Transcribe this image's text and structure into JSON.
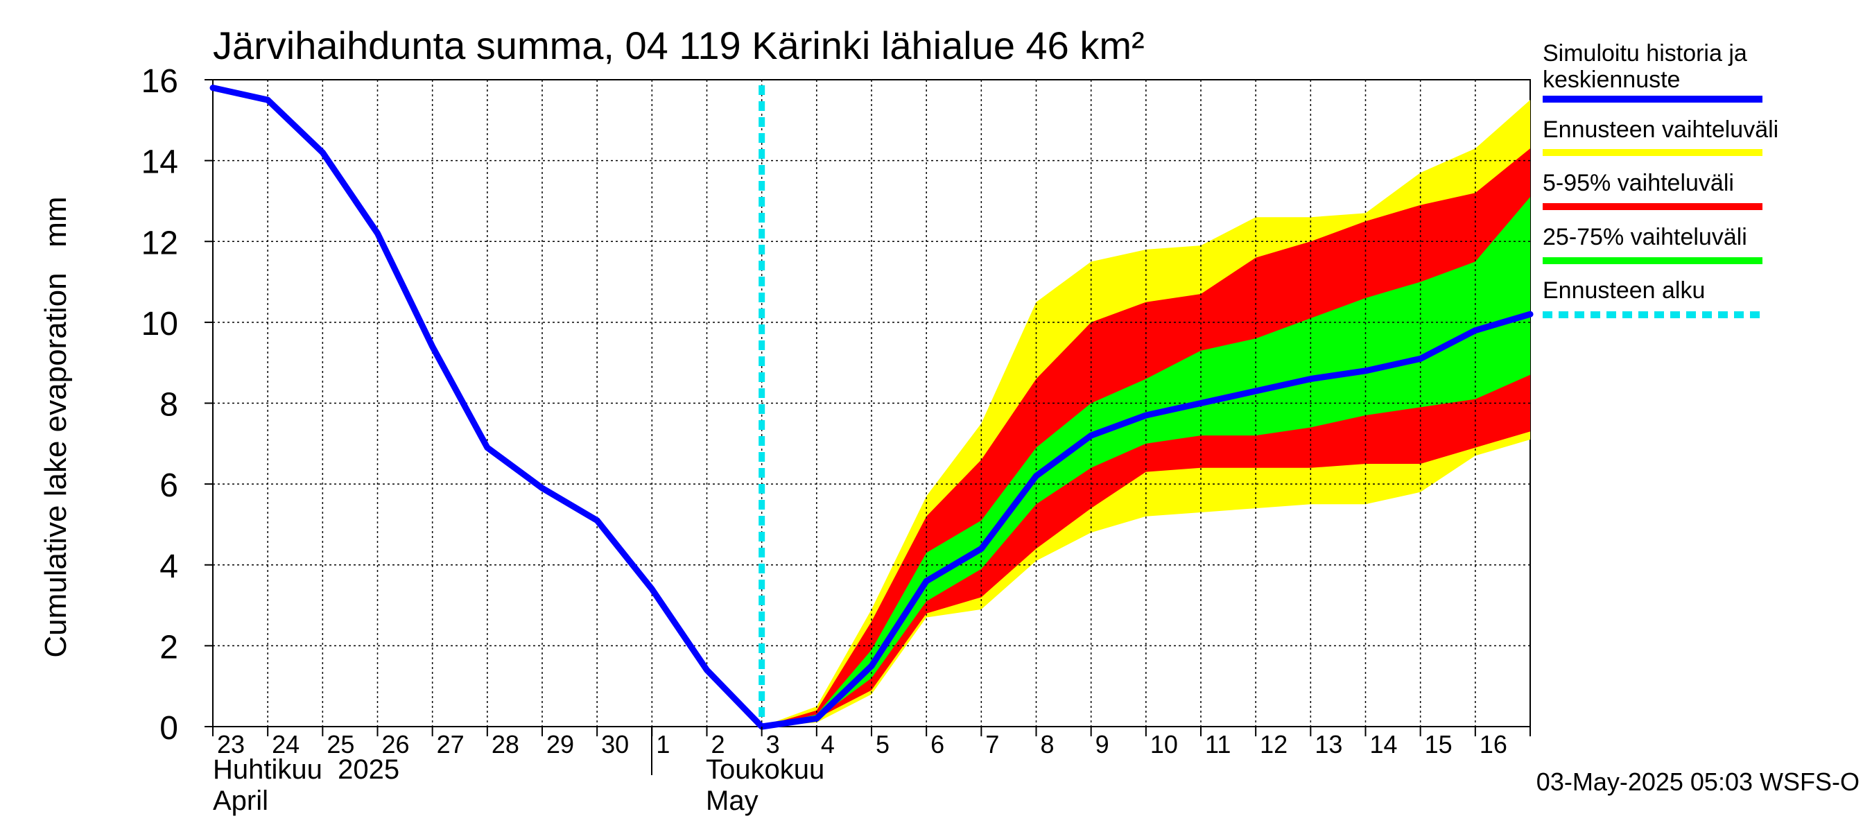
{
  "chart_data": {
    "type": "area",
    "title": "Järvihaihdunta summa, 04 119 Kärinki lähialue 46 km²",
    "ylabel": "Cumulative lake evaporation   mm",
    "ylim": [
      0,
      16
    ],
    "yticks": [
      0,
      2,
      4,
      6,
      8,
      10,
      12,
      14,
      16
    ],
    "xlim_days": [
      0,
      24
    ],
    "x_tick_labels": [
      "23",
      "24",
      "25",
      "26",
      "27",
      "28",
      "29",
      "30",
      "1",
      "2",
      "3",
      "4",
      "5",
      "6",
      "7",
      "8",
      "9",
      "10",
      "11",
      "12",
      "13",
      "14",
      "15",
      "16"
    ],
    "month_labels": {
      "april_fi": "Huhtikuu  2025",
      "april_en": "April",
      "may_fi": "Toukokuu",
      "may_en": "May"
    },
    "forecast_start_day": 10,
    "forecast_days": [
      10,
      11,
      12,
      13,
      14,
      15,
      16,
      17,
      18,
      19,
      20,
      21,
      22,
      23,
      24
    ],
    "series": [
      {
        "name": "Simuloitu historia ja keskiennuste",
        "color": "#0000ff",
        "x": [
          0,
          1,
          2,
          3,
          4,
          5,
          6,
          7,
          8,
          9,
          10,
          11,
          12,
          13,
          14,
          15,
          16,
          17,
          18,
          19,
          20,
          21,
          22,
          23,
          24
        ],
        "values": [
          15.8,
          15.5,
          14.2,
          12.2,
          9.4,
          6.9,
          5.9,
          5.1,
          3.4,
          1.4,
          0.0,
          0.2,
          1.5,
          3.6,
          4.4,
          6.2,
          7.2,
          7.7,
          8.0,
          8.3,
          8.6,
          8.8,
          9.1,
          9.8,
          10.2
        ]
      },
      {
        "name": "Ennusteen vaihteluväli",
        "color": "#ffff00",
        "upper": [
          0.0,
          0.5,
          2.9,
          5.7,
          7.5,
          10.5,
          11.5,
          11.8,
          11.9,
          12.6,
          12.6,
          12.7,
          13.7,
          14.3,
          15.5
        ],
        "lower": [
          0.0,
          0.1,
          0.8,
          2.7,
          2.9,
          4.1,
          4.8,
          5.2,
          5.3,
          5.4,
          5.5,
          5.5,
          5.8,
          6.7,
          7.1
        ]
      },
      {
        "name": "5-95% vaihteluväli",
        "color": "#ff0000",
        "upper": [
          0.0,
          0.4,
          2.6,
          5.2,
          6.6,
          8.6,
          10.0,
          10.5,
          10.7,
          11.6,
          12.0,
          12.5,
          12.9,
          13.2,
          14.3
        ],
        "lower": [
          0.0,
          0.2,
          0.9,
          2.8,
          3.2,
          4.4,
          5.4,
          6.3,
          6.4,
          6.4,
          6.4,
          6.5,
          6.5,
          6.9,
          7.3
        ]
      },
      {
        "name": "25-75% vaihteluväli",
        "color": "#00ff00",
        "upper": [
          0.0,
          0.3,
          1.9,
          4.3,
          5.1,
          6.9,
          8.0,
          8.6,
          9.3,
          9.6,
          10.1,
          10.6,
          11.0,
          11.5,
          13.1
        ],
        "lower": [
          0.0,
          0.2,
          1.2,
          3.1,
          3.9,
          5.5,
          6.4,
          7.0,
          7.2,
          7.2,
          7.4,
          7.7,
          7.9,
          8.1,
          8.7
        ]
      },
      {
        "name": "Ennusteen alku",
        "color": "#00e5ee",
        "style": "dashed"
      }
    ],
    "legend": [
      "Simuloitu historia ja\nkeskiennuste",
      "Ennusteen vaihteluväli",
      "5-95% vaihteluväli",
      "25-75% vaihteluväli",
      "Ennusteen alku"
    ],
    "legend_position": "right",
    "grid": true
  },
  "footer": {
    "timestamp": "03-May-2025 05:03 WSFS-O"
  }
}
